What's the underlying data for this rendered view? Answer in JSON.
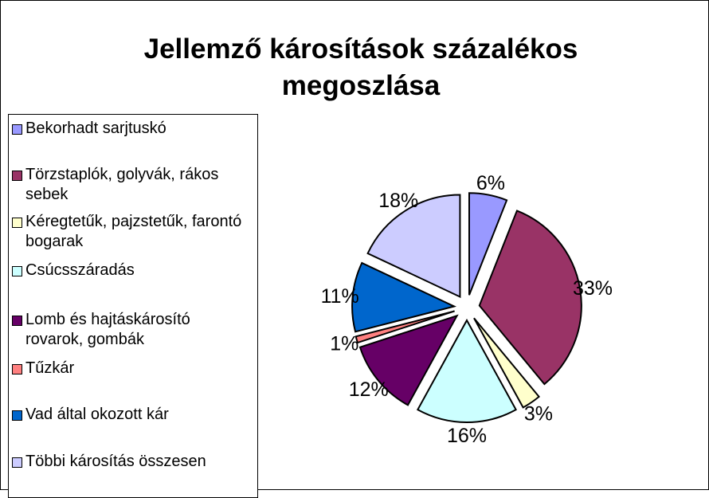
{
  "chart_data": {
    "type": "pie",
    "title": "Jellemző károsítások százalékos megoszlása",
    "categories": [
      "Bekorhadt sarjtuskó",
      "Törzstaplók, golyvák, rákos sebek",
      "Kéregtetűk, pajzstetűk, farontó bogarak",
      "Csúcsszáradás",
      "Lomb és hajtáskárosító rovarok, gombák",
      "Tűzkár",
      "Vad által okozott kár",
      "Többi károsítás összesen"
    ],
    "values": [
      6,
      33,
      3,
      16,
      12,
      1,
      11,
      18
    ],
    "value_labels": [
      "6%",
      "33%",
      "3%",
      "16%",
      "12%",
      "1%",
      "11%",
      "18%"
    ],
    "colors": [
      "#9999ff",
      "#993366",
      "#ffffcc",
      "#ccffff",
      "#660066",
      "#ff8080",
      "#0066cc",
      "#ccccff"
    ]
  }
}
